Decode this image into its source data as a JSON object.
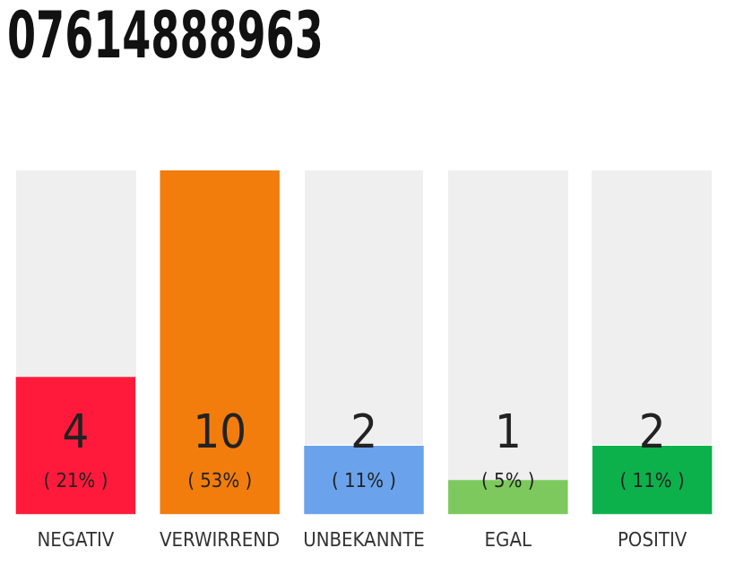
{
  "chart_data": {
    "type": "bar",
    "title": "07614888963",
    "categories": [
      "NEGATIV",
      "VERWIRREND",
      "UNBEKANNTE",
      "EGAL",
      "POSITIV"
    ],
    "values": [
      4,
      10,
      2,
      1,
      2
    ],
    "colors": [
      "#ff1a3c",
      "#f27d0c",
      "#6aa3ec",
      "#7dc95e",
      "#0db14b"
    ],
    "data_labels": true,
    "annotations": [
      "( 21% )",
      "( 53% )",
      "( 11% )",
      "( 5% )",
      "( 11% )"
    ],
    "grid": false,
    "legend": false
  }
}
